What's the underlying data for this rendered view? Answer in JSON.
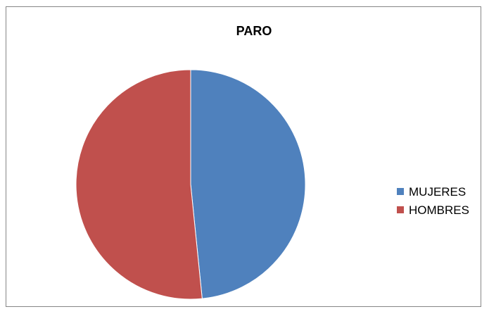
{
  "chart_data": {
    "type": "pie",
    "title": "PARO",
    "categories": [
      "MUJERES",
      "HOMBRES"
    ],
    "values": [
      48.4,
      51.6
    ],
    "colors": [
      "#4f81bd",
      "#c0504d"
    ],
    "start_angle": "12 o'clock",
    "direction": "clockwise",
    "legend_position": "right"
  }
}
